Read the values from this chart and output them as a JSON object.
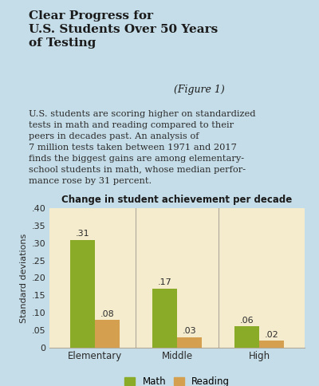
{
  "title": "Change in student achievement per decade",
  "header_title_bold": "Clear Progress for\nU.S. Students Over 50 Years\nof Testing",
  "header_title_italic": " (Figure 1)",
  "header_body": "U.S. students are scoring higher on standardized\ntests in math and reading compared to their\npeers in decades past. An analysis of\n7 million tests taken between 1971 and 2017\nfinds the biggest gains are among elementary-\nschool students in math, whose median perfor-\nmance rose by 31 percent.",
  "categories": [
    "Elementary",
    "Middle",
    "High"
  ],
  "math_values": [
    0.31,
    0.17,
    0.06
  ],
  "reading_values": [
    0.08,
    0.03,
    0.02
  ],
  "math_color": "#8aab28",
  "reading_color": "#d4a050",
  "ylim": [
    0,
    0.4
  ],
  "yticks": [
    0,
    0.05,
    0.1,
    0.15,
    0.2,
    0.25,
    0.3,
    0.35,
    0.4
  ],
  "ytick_labels": [
    "0",
    ".05",
    ".10",
    ".15",
    ".20",
    ".25",
    ".30",
    ".35",
    ".40"
  ],
  "ylabel": "Standard deviations",
  "header_bg": "#c5dde8",
  "chart_bg": "#f5ecce",
  "bar_width": 0.3,
  "legend_math": "Math",
  "legend_reading": "Reading",
  "divider_color": "#b0a898",
  "spine_color": "#b0a898"
}
